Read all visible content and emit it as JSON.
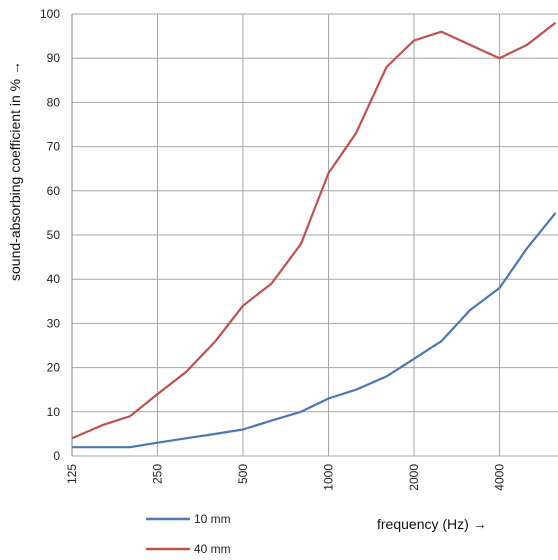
{
  "chart_data": {
    "type": "line",
    "xscale": "log",
    "xlabel": "frequency (Hz) →",
    "ylabel": "sound-absorbing coefficient in % →",
    "ylim": [
      0,
      100
    ],
    "yticks": [
      0,
      10,
      20,
      30,
      40,
      50,
      60,
      70,
      80,
      90,
      100
    ],
    "xticks": [
      {
        "value": 125,
        "label": "125"
      },
      {
        "value": 250,
        "label": "250"
      },
      {
        "value": 500,
        "label": "500"
      },
      {
        "value": 1000,
        "label": "1000"
      },
      {
        "value": 2000,
        "label": "2000"
      },
      {
        "value": 4000,
        "label": "4000"
      }
    ],
    "grid": true,
    "legend_position": "bottom-left",
    "series": [
      {
        "name": "10 mm",
        "color": "#4a78b5",
        "points": [
          [
            125,
            2
          ],
          [
            160,
            2
          ],
          [
            200,
            2
          ],
          [
            250,
            3
          ],
          [
            315,
            4
          ],
          [
            400,
            5
          ],
          [
            500,
            6
          ],
          [
            630,
            8
          ],
          [
            800,
            10
          ],
          [
            1000,
            13
          ],
          [
            1250,
            15
          ],
          [
            1600,
            18
          ],
          [
            2000,
            22
          ],
          [
            2500,
            26
          ],
          [
            3150,
            33
          ],
          [
            4000,
            38
          ],
          [
            5000,
            47
          ],
          [
            6300,
            55
          ]
        ]
      },
      {
        "name": "40 mm",
        "color": "#c0504d",
        "points": [
          [
            125,
            4
          ],
          [
            160,
            7
          ],
          [
            200,
            9
          ],
          [
            250,
            14
          ],
          [
            315,
            19
          ],
          [
            400,
            26
          ],
          [
            500,
            34
          ],
          [
            630,
            39
          ],
          [
            800,
            48
          ],
          [
            1000,
            64
          ],
          [
            1250,
            73
          ],
          [
            1600,
            88
          ],
          [
            2000,
            94
          ],
          [
            2500,
            96
          ],
          [
            3150,
            93
          ],
          [
            4000,
            90
          ],
          [
            5000,
            93
          ],
          [
            6300,
            98
          ]
        ]
      }
    ]
  }
}
